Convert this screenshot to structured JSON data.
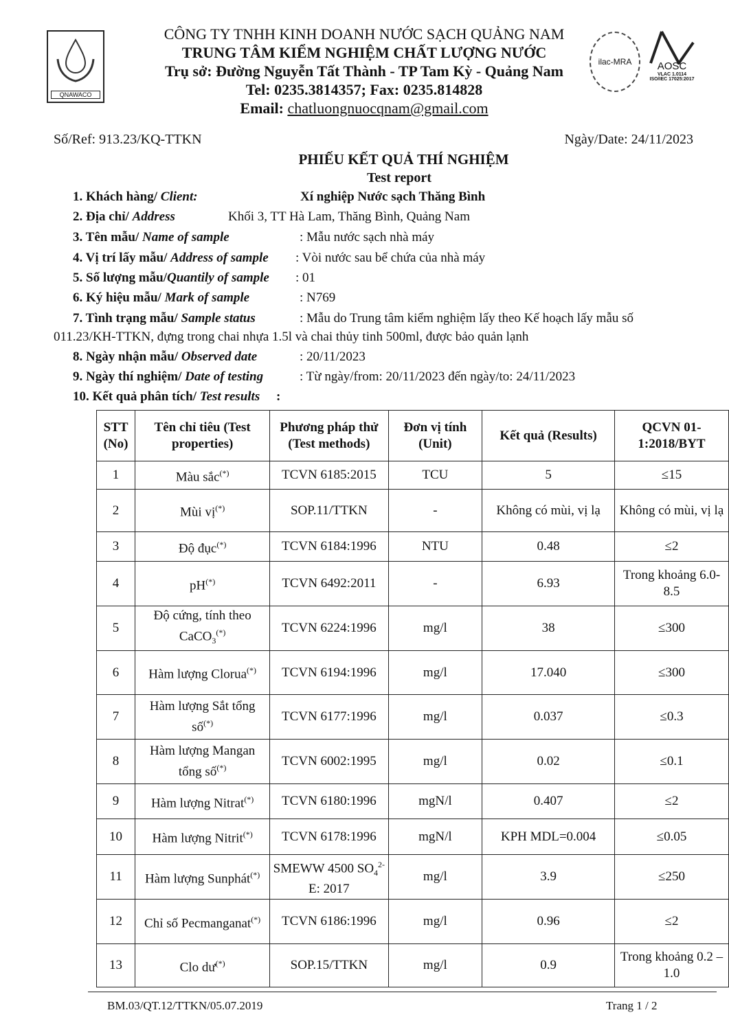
{
  "header": {
    "logo_text": "QNAWACO",
    "company": "CÔNG TY TNHH KINH DOANH NƯỚC SẠCH QUẢNG NAM",
    "center": "TRUNG TÂM KIỂM NGHIỆM CHẤT LƯỢNG NƯỚC",
    "address": "Trụ sở: Đường Nguyễn Tất Thành - TP Tam Kỳ -  Quảng Nam",
    "tel": "Tel: 0235.3814357; Fax: 0235.814828",
    "email_label": "Email: ",
    "email": "chatluongnuocqnam@gmail.com",
    "accreditation_logo": "ilac-MRA",
    "aosc_logo": "AOSC",
    "vilas": "VLAC 1.0114",
    "iso": "ISO/IEC 17025:2017"
  },
  "ref": "Số/Ref: 913.23/KQ-TTKN",
  "date": "Ngày/Date: 24/11/2023",
  "title": "PHIẾU KẾT QUẢ THÍ NGHIỆM",
  "subtitle": "Test report",
  "info": [
    {
      "label": "1. Khách hàng/ ",
      "en": "Client:",
      "value": "Xí nghiệp Nước sạch Thăng Bình"
    },
    {
      "label": "2. Địa chỉ/ ",
      "en": "Address",
      "value": "Khối 3, TT Hà Lam, Thăng Bình, Quảng Nam"
    },
    {
      "label": "3. Tên mẫu/ ",
      "en": "Name of sample",
      "value": ": Mẫu nước sạch nhà máy"
    },
    {
      "label": "4. Vị trí lấy mẫu/ ",
      "en": "Address of sample",
      "value": ": Vòi nước sau bể chứa của nhà máy"
    },
    {
      "label": "5. Số lượng mẫu/",
      "en": "Quantily of sample",
      "value": ": 01"
    },
    {
      "label": "6. Ký hiệu mẫu/ ",
      "en": "Mark of sample",
      "value": ": N769"
    },
    {
      "label": "7. Tình trạng mẫu/ ",
      "en": "Sample status",
      "value": ": Mẫu do Trung tâm kiểm nghiệm lấy theo Kế hoạch lấy mẫu số",
      "cont": "011.23/KH-TTKN, đựng trong chai nhựa 1.5l và chai thủy tinh 500ml, được bảo quản lạnh"
    },
    {
      "label": "8. Ngày nhận mẫu/ ",
      "en": "Observed date",
      "value": ": 20/11/2023"
    },
    {
      "label": "9. Ngày thí nghiệm/ ",
      "en": "Date of testing",
      "value": ": Từ ngày/from: 20/11/2023  đến ngày/to: 24/11/2023"
    },
    {
      "label": "10. Kết quả phân tích/ ",
      "en": "Test results",
      "value": ":"
    }
  ],
  "table": {
    "headers": [
      "STT (No)",
      "Tên chỉ tiêu (Test properties)",
      "Phương pháp thử (Test methods)",
      "Đơn vị tính (Unit)",
      "Kết quả (Results)",
      "QCVN 01-1:2018/BYT"
    ],
    "sup": "(*)",
    "rows": [
      {
        "no": "1",
        "name": "Màu sắc",
        "method": "TCVN 6185:2015",
        "unit": "TCU",
        "result": "5",
        "limit": "≤15"
      },
      {
        "no": "2",
        "name": "Mùi vị",
        "method": "SOP.11/TTKN",
        "unit": "-",
        "result": "Không có mùi, vị lạ",
        "limit": "Không có mùi, vị lạ"
      },
      {
        "no": "3",
        "name": "Độ đục",
        "method": "TCVN 6184:1996",
        "unit": "NTU",
        "result": "0.48",
        "limit": "≤2"
      },
      {
        "no": "4",
        "name": "pH",
        "method": "TCVN 6492:2011",
        "unit": "-",
        "result": "6.93",
        "limit": "Trong khoảng 6.0-8.5"
      },
      {
        "no": "5",
        "name": "Độ cứng, tính theo CaCO",
        "sub": "3",
        "method": "TCVN 6224:1996",
        "unit": "mg/l",
        "result": "38",
        "limit": "≤300"
      },
      {
        "no": "6",
        "name": "Hàm lượng Clorua",
        "method": "TCVN 6194:1996",
        "unit": "mg/l",
        "result": "17.040",
        "limit": "≤300"
      },
      {
        "no": "7",
        "name": "Hàm lượng Sắt tổng số",
        "method": "TCVN 6177:1996",
        "unit": "mg/l",
        "result": "0.037",
        "limit": "≤0.3"
      },
      {
        "no": "8",
        "name": "Hàm lượng Mangan tổng số",
        "method": "TCVN 6002:1995",
        "unit": "mg/l",
        "result": "0.02",
        "limit": "≤0.1"
      },
      {
        "no": "9",
        "name": "Hàm lượng Nitrat",
        "method": "TCVN 6180:1996",
        "unit": "mgN/l",
        "result": "0.407",
        "limit": "≤2"
      },
      {
        "no": "10",
        "name": "Hàm lượng Nitrit",
        "method": "TCVN 6178:1996",
        "unit": "mgN/l",
        "result": "KPH MDL=0.004",
        "limit": "≤0.05"
      },
      {
        "no": "11",
        "name": "Hàm lượng Sunphát",
        "method": "SMEWW 4500 SO",
        "method_sub": "4",
        "method_sup": "2-",
        "method_tail": "E: 2017",
        "unit": "mg/l",
        "result": "3.9",
        "limit": "≤250"
      },
      {
        "no": "12",
        "name": "Chỉ số Pecmanganat",
        "method": "TCVN 6186:1996",
        "unit": "mg/l",
        "result": "0.96",
        "limit": "≤2"
      },
      {
        "no": "13",
        "name": "Clo dư",
        "method": "SOP.15/TTKN",
        "unit": "mg/l",
        "result": "0.9",
        "limit": "Trong khoảng 0.2 – 1.0"
      }
    ]
  },
  "footer": {
    "form": "BM.03/QT.12/TTKN/05.07.2019",
    "page": "Trang 1 / 2"
  }
}
